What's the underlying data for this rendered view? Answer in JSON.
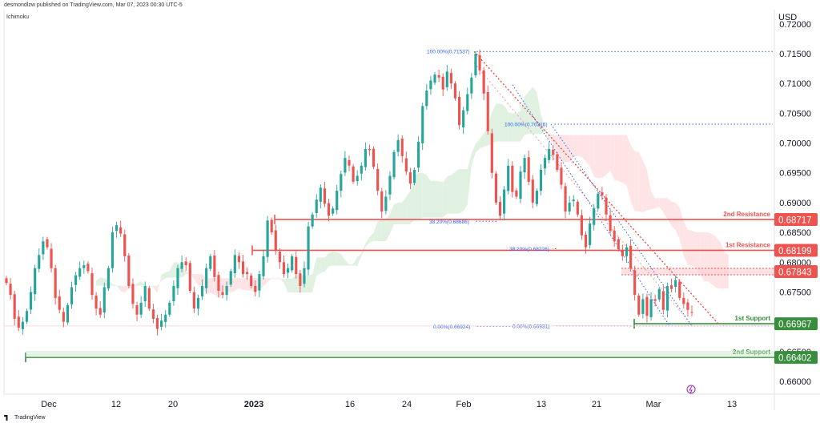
{
  "header": {
    "publish_line": "desmondlzw published on TradingView.com, Mar 07, 2023 00:30 UTC-5",
    "indicator": "Ichimoku",
    "currency": "USD"
  },
  "footer": {
    "logo_text": "TradingView"
  },
  "colors": {
    "up": "#26a69a",
    "down": "#ef5350",
    "resistance": "#ef5350",
    "support": "#388e3c",
    "fib": "#2962ff",
    "cloud_bull": "#c8e6c9",
    "cloud_bear": "#ffcdd2"
  },
  "chart_data": {
    "type": "line",
    "title": "",
    "ylabel": "USD",
    "y_axis": {
      "range": [
        0.6556,
        0.7225
      ],
      "ticks": [
        "0.72000",
        "0.71500",
        "0.71000",
        "0.70500",
        "0.70000",
        "0.69500",
        "0.69000",
        "0.68500",
        "0.68000",
        "0.67500",
        "0.67000",
        "0.66500",
        "0.66000"
      ]
    },
    "x_axis": {
      "ticks": [
        {
          "label": "Dec",
          "bold": false
        },
        {
          "label": "12",
          "bold": false
        },
        {
          "label": "20",
          "bold": false
        },
        {
          "label": "2023",
          "bold": true
        },
        {
          "label": "16",
          "bold": false
        },
        {
          "label": "24",
          "bold": false
        },
        {
          "label": "Feb",
          "bold": false
        },
        {
          "label": "13",
          "bold": false
        },
        {
          "label": "21",
          "bold": false
        },
        {
          "label": "Mar",
          "bold": false
        },
        {
          "label": "13",
          "bold": false
        }
      ]
    },
    "series": [
      {
        "type": "candlestick",
        "approx_closes": [
          0.6765,
          0.6745,
          0.6705,
          0.669,
          0.67,
          0.6718,
          0.675,
          0.679,
          0.6812,
          0.6835,
          0.6825,
          0.679,
          0.674,
          0.672,
          0.67,
          0.6728,
          0.6758,
          0.6778,
          0.679,
          0.6795,
          0.6785,
          0.6745,
          0.6722,
          0.6712,
          0.6758,
          0.679,
          0.685,
          0.6862,
          0.6848,
          0.681,
          0.676,
          0.673,
          0.6712,
          0.6732,
          0.676,
          0.6722,
          0.6705,
          0.6688,
          0.6702,
          0.6712,
          0.6732,
          0.676,
          0.679,
          0.68,
          0.6795,
          0.6752,
          0.6722,
          0.674,
          0.676,
          0.679,
          0.681,
          0.6775,
          0.6752,
          0.6745,
          0.676,
          0.6785,
          0.6812,
          0.68,
          0.678,
          0.678,
          0.676,
          0.675,
          0.678,
          0.681,
          0.687,
          0.685,
          0.682,
          0.68,
          0.678,
          0.679,
          0.681,
          0.678,
          0.676,
          0.679,
          0.686,
          0.688,
          0.6905,
          0.6925,
          0.6898,
          0.6878,
          0.689,
          0.692,
          0.6948,
          0.6975,
          0.6962,
          0.6935,
          0.6945,
          0.6962,
          0.699,
          0.6988,
          0.696,
          0.692,
          0.6885,
          0.691,
          0.6945,
          0.6985,
          0.7005,
          0.6978,
          0.6952,
          0.6932,
          0.6955,
          0.7002,
          0.7062,
          0.7088,
          0.7105,
          0.7115,
          0.711,
          0.709,
          0.712,
          0.71,
          0.7075,
          0.703,
          0.7055,
          0.7082,
          0.711,
          0.715,
          0.7122,
          0.7083,
          0.702,
          0.695,
          0.69,
          0.6878,
          0.6922,
          0.6962,
          0.6918,
          0.691,
          0.6952,
          0.6975,
          0.6935,
          0.69,
          0.692,
          0.6955,
          0.6975,
          0.699,
          0.698,
          0.6955,
          0.693,
          0.6885,
          0.69,
          0.6905,
          0.688,
          0.6845,
          0.6825,
          0.6865,
          0.689,
          0.6915,
          0.6912,
          0.688,
          0.6852,
          0.6835,
          0.6822,
          0.681,
          0.6825,
          0.679,
          0.6745,
          0.6712,
          0.6738,
          0.671,
          0.6738,
          0.6735,
          0.6755,
          0.672,
          0.676,
          0.6755,
          0.677,
          0.674,
          0.673,
          0.672,
          0.6715
        ]
      },
      {
        "name": "",
        "type": "ichimoku-cloud",
        "bullish_fill": "#c8e6c9",
        "bearish_fill": "#ffcdd2"
      }
    ],
    "levels": [
      {
        "price": 0.68717,
        "label": "0.68717",
        "zone_label": "2nd Resistance",
        "color": "#ef5350"
      },
      {
        "price": 0.68199,
        "label": "0.68199",
        "zone_label": "1st Resistance",
        "color": "#ef5350"
      },
      {
        "price": 0.67843,
        "label": "0.67843",
        "zone_label": "",
        "color": "#ef5350"
      },
      {
        "price": 0.66967,
        "label": "0.66967",
        "zone_label": "1st Support",
        "color": "#388e3c"
      },
      {
        "price": 0.66402,
        "label": "0.66402",
        "zone_label": "2nd Support",
        "color": "#388e3c"
      }
    ],
    "fib_labels": [
      {
        "text": "100.00%(0.71537)",
        "price": 0.71537
      },
      {
        "text": "100.00%(0.70316)",
        "price": 0.70316
      },
      {
        "text": "38.20%(0.68686)",
        "price": 0.68686
      },
      {
        "text": "38.20%(0.68226)",
        "price": 0.68226
      },
      {
        "text": "0.00%(0.66924)",
        "price": 0.66924
      },
      {
        "text": "0.00%(0.66931)",
        "price": 0.66931
      }
    ],
    "grid": false,
    "legend": "none"
  }
}
